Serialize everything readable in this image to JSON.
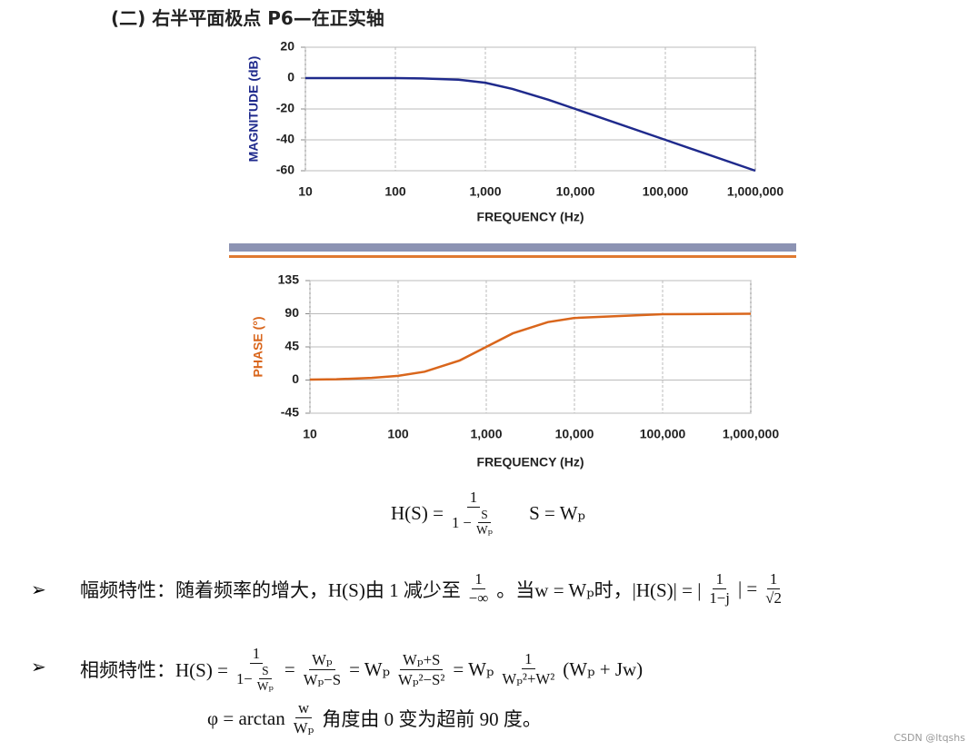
{
  "chart_data": [
    {
      "type": "line",
      "xscale": "log",
      "grid": true,
      "color": "#1f2a8c",
      "ylabel": "MAGNITUDE (dB)",
      "xlabel": "FREQUENCY (Hz)",
      "x": [
        10,
        20,
        50,
        100,
        200,
        500,
        1000,
        2000,
        5000,
        10000,
        100000,
        1000000
      ],
      "values": [
        0,
        0,
        0,
        0,
        -0.2,
        -1,
        -3,
        -7,
        -14,
        -20,
        -40,
        -60
      ],
      "xlim": [
        10,
        1000000
      ],
      "xticks": [
        10,
        100,
        {
          "value": 1000,
          "label": "1,000"
        },
        {
          "value": 10000,
          "label": "10,000"
        },
        {
          "value": 100000,
          "label": "100,000"
        },
        {
          "value": 1000000,
          "label": "1,000,000"
        }
      ],
      "ylim": [
        -60,
        20
      ],
      "yticks": [
        -60,
        -40,
        -20,
        0,
        20
      ]
    },
    {
      "type": "line",
      "xscale": "log",
      "grid": true,
      "color": "#d9661c",
      "ylabel": "PHASE (°)",
      "xlabel": "FREQUENCY (Hz)",
      "x": [
        10,
        20,
        50,
        100,
        200,
        500,
        1000,
        2000,
        5000,
        10000,
        100000,
        1000000
      ],
      "values": [
        0.6,
        1.1,
        2.9,
        5.7,
        11.3,
        26.6,
        45,
        63.4,
        78.7,
        84.3,
        89.4,
        90
      ],
      "xlim": [
        10,
        1000000
      ],
      "xticks": [
        10,
        100,
        {
          "value": 1000,
          "label": "1,000"
        },
        {
          "value": 10000,
          "label": "10,000"
        },
        {
          "value": 100000,
          "label": "100,000"
        },
        {
          "value": 1000000,
          "label": "1,000,000"
        }
      ],
      "ylim": [
        -45,
        135
      ],
      "yticks": [
        -45,
        0,
        45,
        90,
        135
      ]
    }
  ],
  "document": {
    "heading": "(二) 右半平面极点 P6—在正实轴",
    "formula": [
      "H(S) =",
      {
        "num": [
          "1"
        ],
        "den": [
          "1 −",
          {
            "num": [
              "S"
            ],
            "den": [
              "Wₚ"
            ]
          }
        ]
      },
      "S = Wₚ"
    ],
    "bullet": "➢",
    "line1": [
      "幅频特性：随着频率的增大，H(S)由 1 减少至",
      {
        "num": [
          "1"
        ],
        "den": [
          "−∞"
        ]
      },
      "。当w = Wₚ时，|H(S)| = |",
      {
        "num": [
          "1"
        ],
        "den": [
          "1−j"
        ]
      },
      "| =",
      {
        "num": [
          "1"
        ],
        "den": [
          "√2"
        ]
      }
    ],
    "line2": [
      "相频特性：H(S) =",
      {
        "num": [
          "1"
        ],
        "den": [
          "1−",
          {
            "num": [
              "S"
            ],
            "den": [
              "Wₚ"
            ]
          }
        ]
      },
      "=",
      {
        "num": [
          "Wₚ"
        ],
        "den": [
          "Wₚ−S"
        ]
      },
      "= Wₚ",
      {
        "num": [
          "Wₚ+S"
        ],
        "den": [
          "Wₚ²−S²"
        ]
      },
      "= Wₚ",
      {
        "num": [
          "1"
        ],
        "den": [
          "Wₚ²+W²"
        ]
      },
      "(Wₚ + Jw)"
    ],
    "line3": [
      "φ = arctan",
      {
        "num": [
          "w"
        ],
        "den": [
          "Wₚ"
        ]
      },
      "角度由 0 变为超前 90 度。"
    ],
    "watermark": "CSDN @ltqshs"
  }
}
